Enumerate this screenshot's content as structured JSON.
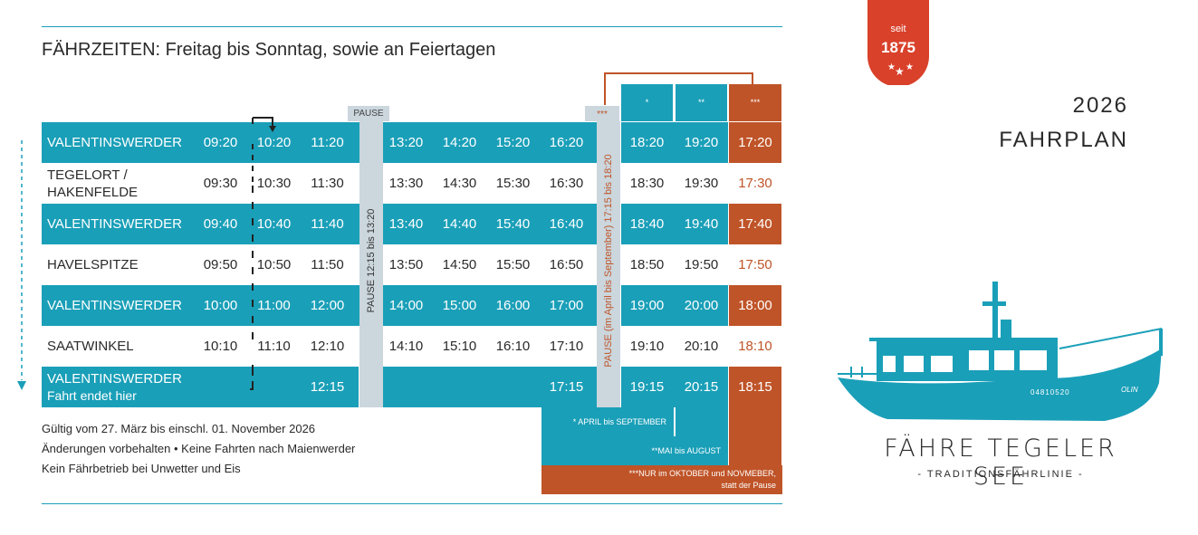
{
  "header": {
    "title": "FÄHRZEITEN: Freitag bis Sonntag, sowie an Feiertagen",
    "pause_label": "PAUSE",
    "extra_label": "***",
    "col_headers": [
      "*",
      "**",
      "***"
    ]
  },
  "rows": [
    {
      "stop": [
        "VALENTINSWERDER"
      ],
      "times": [
        "09:20",
        "10:20",
        "11:20",
        "13:20",
        "14:20",
        "15:20",
        "16:20"
      ],
      "extra": [
        "18:20",
        "19:20",
        "17:20"
      ]
    },
    {
      "stop": [
        "TEGELORT /",
        "HAKENFELDE"
      ],
      "times": [
        "09:30",
        "10:30",
        "11:30",
        "13:30",
        "14:30",
        "15:30",
        "16:30"
      ],
      "extra": [
        "18:30",
        "19:30",
        "17:30"
      ]
    },
    {
      "stop": [
        "VALENTINSWERDER"
      ],
      "times": [
        "09:40",
        "10:40",
        "11:40",
        "13:40",
        "14:40",
        "15:40",
        "16:40"
      ],
      "extra": [
        "18:40",
        "19:40",
        "17:40"
      ]
    },
    {
      "stop": [
        "HAVELSPITZE"
      ],
      "times": [
        "09:50",
        "10:50",
        "11:50",
        "13:50",
        "14:50",
        "15:50",
        "16:50"
      ],
      "extra": [
        "18:50",
        "19:50",
        "17:50"
      ]
    },
    {
      "stop": [
        "VALENTINSWERDER"
      ],
      "times": [
        "10:00",
        "11:00",
        "12:00",
        "14:00",
        "15:00",
        "16:00",
        "17:00"
      ],
      "extra": [
        "19:00",
        "20:00",
        "18:00"
      ]
    },
    {
      "stop": [
        "SAATWINKEL"
      ],
      "times": [
        "10:10",
        "11:10",
        "12:10",
        "14:10",
        "15:10",
        "16:10",
        "17:10"
      ],
      "extra": [
        "19:10",
        "20:10",
        "18:10"
      ]
    },
    {
      "stop": [
        "VALENTINSWERDER",
        "Fahrt endet hier"
      ],
      "times": [
        "",
        "",
        "12:15",
        "",
        "",
        "",
        "17:15"
      ],
      "extra": [
        "19:15",
        "20:15",
        "18:15"
      ]
    }
  ],
  "pause_vertical": "PAUSE 12:15 bis 13:20",
  "pause_vertical_2": "PAUSE (im April bis September) 17:15 bis 18:20",
  "notes": {
    "n1": "* APRIL bis SEPTEMBER",
    "n2": "**MAI bis AUGUST",
    "n3a": "***NUR im OKTOBER und NOVMEBER,",
    "n3b": "statt der Pause"
  },
  "footer": [
    "Gültig vom 27. März bis einschl. 01. November 2026",
    "Änderungen vorbehalten • Keine Fahrten nach Maienwerder",
    "Kein Fährbetrieb bei Unwetter und Eis"
  ],
  "badge": {
    "top": "seit",
    "year": "1875"
  },
  "year_title": "2026",
  "plan_title": "FAHRPLAN",
  "boat_reg": "04810520",
  "boat_name": "OLIN",
  "brand": "FÄHRE TEGELER SEE",
  "tagline": "- TRADITIONSFÄHRLINIE -",
  "colors": {
    "teal": "#1a9fb8",
    "orange": "#bf5428",
    "red": "#d9412b",
    "pause_grey": "#cbd6dd"
  }
}
